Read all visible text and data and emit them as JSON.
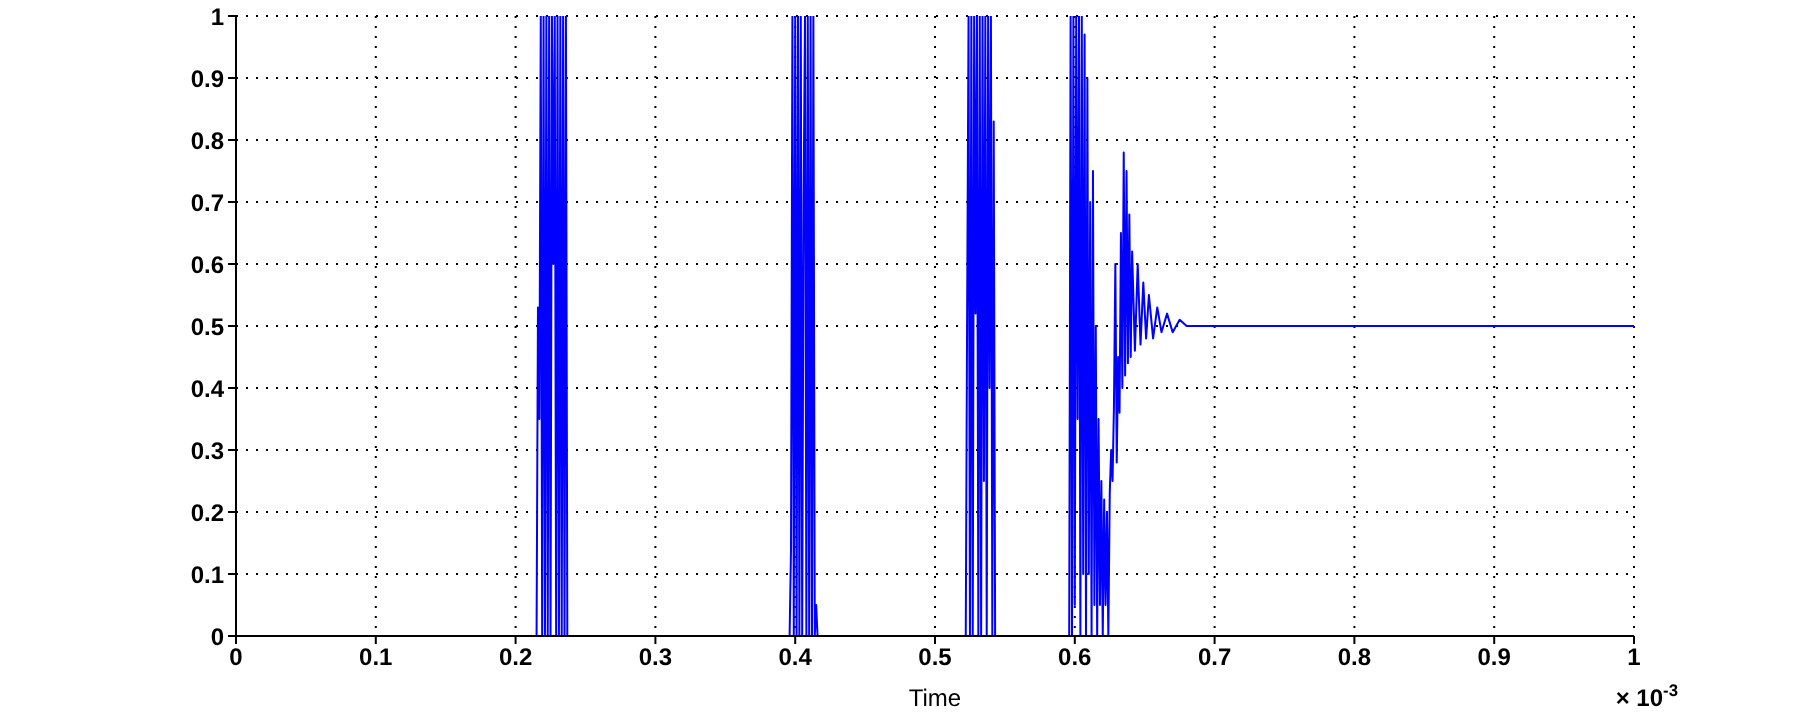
{
  "chart_data": {
    "type": "line",
    "xlabel": "Time",
    "annotations": [
      "× 10$^{-3}$"
    ],
    "xlim": [
      0,
      1
    ],
    "xticks": [
      0,
      0.1,
      0.2,
      0.3,
      0.4,
      0.5,
      0.6,
      0.7,
      0.8,
      0.9,
      1
    ],
    "ylim": [
      0,
      1
    ],
    "yticks": [
      0,
      0.1,
      0.2,
      0.3,
      0.4,
      0.5,
      0.6,
      0.7,
      0.8,
      0.9,
      1
    ],
    "grid": true,
    "marker": "none",
    "line_style": "solid",
    "series": [
      {
        "color": "#0000ff",
        "x": [
          0,
          0.215,
          0.216,
          0.217,
          0.218,
          0.219,
          0.22,
          0.221,
          0.222,
          0.223,
          0.224,
          0.225,
          0.226,
          0.227,
          0.228,
          0.229,
          0.23,
          0.231,
          0.232,
          0.233,
          0.234,
          0.235,
          0.236,
          0.237,
          0.396,
          0.397,
          0.398,
          0.399,
          0.4,
          0.401,
          0.402,
          0.403,
          0.404,
          0.405,
          0.406,
          0.407,
          0.408,
          0.409,
          0.41,
          0.411,
          0.412,
          0.413,
          0.414,
          0.415,
          0.416,
          0.522,
          0.523,
          0.524,
          0.525,
          0.526,
          0.527,
          0.528,
          0.529,
          0.53,
          0.531,
          0.532,
          0.533,
          0.534,
          0.535,
          0.536,
          0.537,
          0.538,
          0.539,
          0.54,
          0.541,
          0.542,
          0.543,
          0.596,
          0.597,
          0.598,
          0.599,
          0.6,
          0.601,
          0.602,
          0.603,
          0.604,
          0.605,
          0.606,
          0.607,
          0.608,
          0.609,
          0.61,
          0.611,
          0.612,
          0.613,
          0.614,
          0.615,
          0.616,
          0.617,
          0.618,
          0.619,
          0.62,
          0.621,
          0.622,
          0.623,
          0.624,
          0.625,
          0.626,
          0.627,
          0.628,
          0.629,
          0.63,
          0.631,
          0.632,
          0.633,
          0.634,
          0.635,
          0.636,
          0.637,
          0.638,
          0.639,
          0.64,
          0.641,
          0.643,
          0.645,
          0.647,
          0.649,
          0.651,
          0.653,
          0.656,
          0.659,
          0.662,
          0.666,
          0.67,
          0.675,
          0.68,
          1
        ],
        "values": [
          0,
          0,
          0.53,
          0.35,
          1,
          0,
          1,
          0,
          1,
          0,
          1,
          0,
          1,
          0.6,
          1,
          0,
          1,
          0,
          1,
          0,
          1,
          0,
          1,
          0,
          0,
          0.14,
          1,
          0,
          1,
          0,
          1,
          0,
          1,
          0,
          0.7,
          1,
          0,
          1,
          0,
          1,
          0,
          1,
          0,
          0.05,
          0,
          0,
          0.53,
          1,
          0,
          1,
          0,
          1,
          0.52,
          1,
          0,
          1,
          0,
          1,
          0.25,
          1,
          0,
          1,
          0.4,
          1,
          0,
          0.83,
          0,
          0,
          1,
          0,
          1,
          0.05,
          1,
          0.35,
          1,
          0,
          1,
          0.1,
          0.97,
          0,
          0.9,
          0.1,
          0.7,
          0,
          0.75,
          0.05,
          0.5,
          0,
          0.35,
          0.05,
          0.25,
          0,
          0.22,
          0.05,
          0.2,
          0,
          0.23,
          0.3,
          0.25,
          0.37,
          0.6,
          0.28,
          0.45,
          0.36,
          0.65,
          0.4,
          0.78,
          0.42,
          0.75,
          0.44,
          0.68,
          0.45,
          0.62,
          0.46,
          0.6,
          0.47,
          0.57,
          0.48,
          0.55,
          0.48,
          0.53,
          0.49,
          0.52,
          0.49,
          0.51,
          0.5,
          0.5
        ]
      }
    ]
  }
}
